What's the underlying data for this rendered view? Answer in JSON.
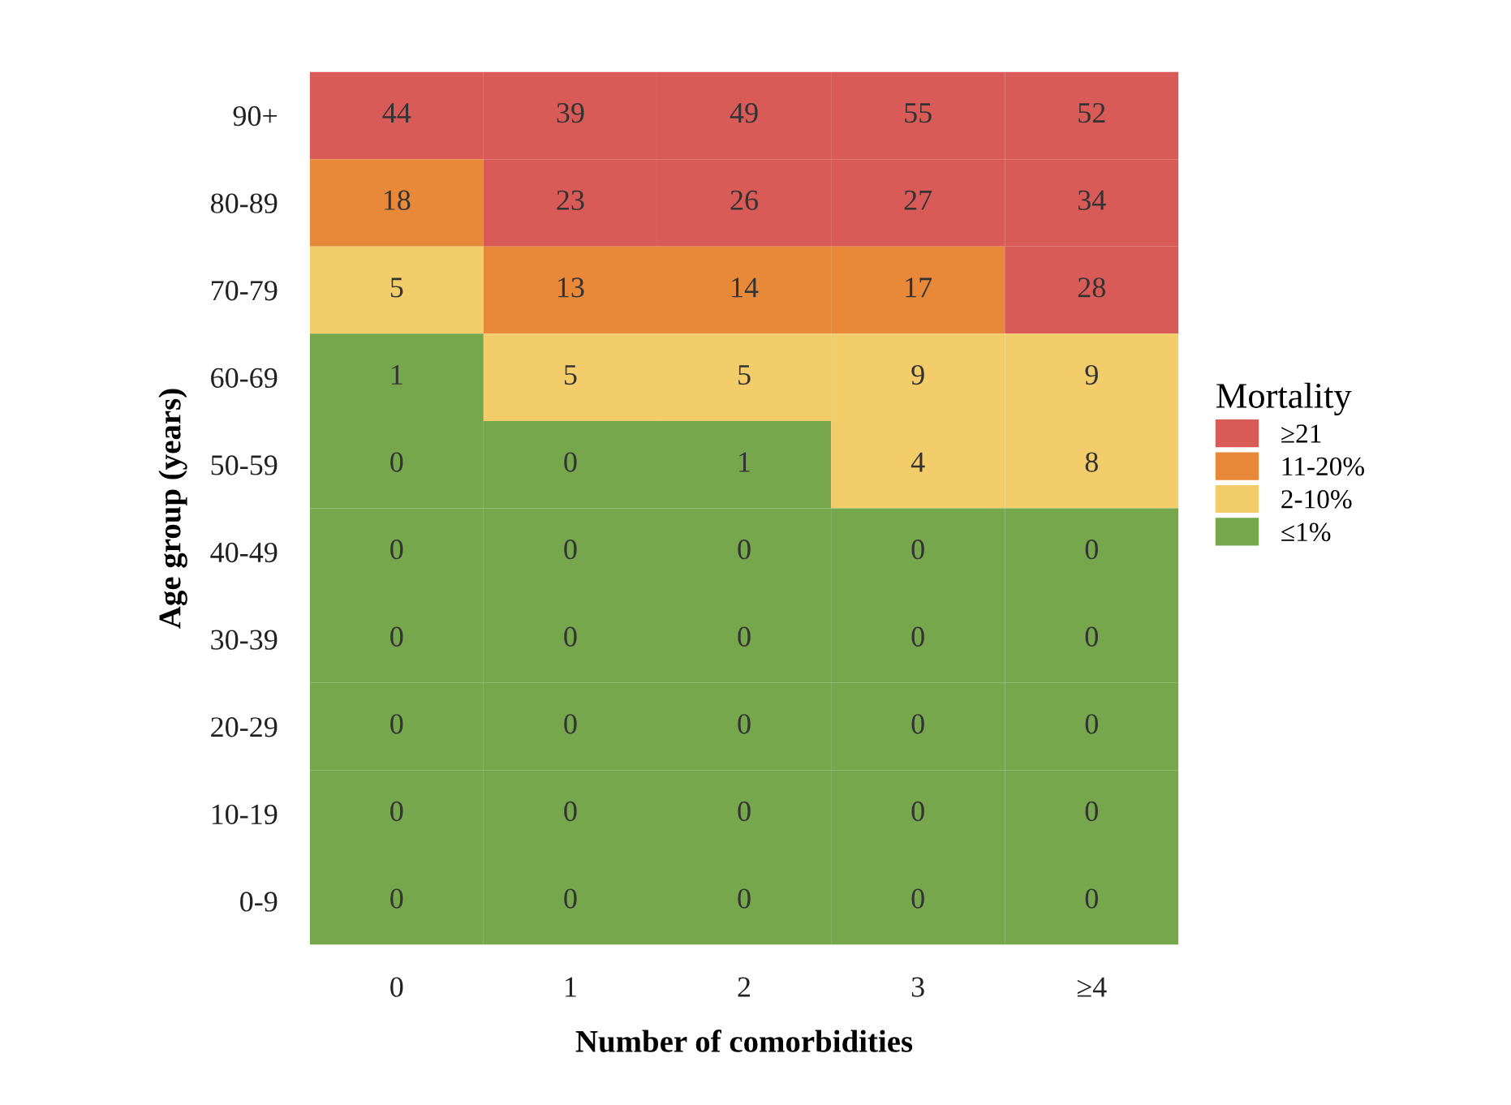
{
  "chart_data": {
    "type": "heatmap",
    "xlabel": "Number of comorbidities",
    "ylabel": "Age group (years)",
    "legend_title": "Mortality",
    "legend": "right",
    "categories": [
      "0",
      "1",
      "2",
      "3",
      "≥4"
    ],
    "y_categories": [
      "90+",
      "80-89",
      "70-79",
      "60-69",
      "50-59",
      "40-49",
      "30-39",
      "20-29",
      "10-19",
      "0-9"
    ],
    "cells": [
      [
        44,
        39,
        49,
        55,
        52
      ],
      [
        18,
        23,
        26,
        27,
        34
      ],
      [
        5,
        13,
        14,
        17,
        28
      ],
      [
        1,
        5,
        5,
        9,
        9
      ],
      [
        0,
        0,
        1,
        4,
        8
      ],
      [
        0,
        0,
        0,
        0,
        0
      ],
      [
        0,
        0,
        0,
        0,
        0
      ],
      [
        0,
        0,
        0,
        0,
        0
      ],
      [
        0,
        0,
        0,
        0,
        0
      ],
      [
        0,
        0,
        0,
        0,
        0
      ]
    ],
    "colors": [
      [
        "#d95b57",
        "#d95b57",
        "#d95b57",
        "#d95b57",
        "#d95b57"
      ],
      [
        "#e8893a",
        "#d95b57",
        "#d95b57",
        "#d95b57",
        "#d95b57"
      ],
      [
        "#f2cd6a",
        "#e8893a",
        "#e8893a",
        "#e8893a",
        "#d95b57"
      ],
      [
        "#76a74d",
        "#f2cd6a",
        "#f2cd6a",
        "#f2cd6a",
        "#f2cd6a"
      ],
      [
        "#76a74d",
        "#76a74d",
        "#76a74d",
        "#f2cd6a",
        "#f2cd6a"
      ],
      [
        "#76a74d",
        "#76a74d",
        "#76a74d",
        "#76a74d",
        "#76a74d"
      ],
      [
        "#76a74d",
        "#76a74d",
        "#76a74d",
        "#76a74d",
        "#76a74d"
      ],
      [
        "#76a74d",
        "#76a74d",
        "#76a74d",
        "#76a74d",
        "#76a74d"
      ],
      [
        "#76a74d",
        "#76a74d",
        "#76a74d",
        "#76a74d",
        "#76a74d"
      ],
      [
        "#76a74d",
        "#76a74d",
        "#76a74d",
        "#76a74d",
        "#76a74d"
      ]
    ],
    "series": [
      {
        "name": "≥21",
        "color": "#d95b57",
        "values": [
          null,
          null,
          null,
          null,
          null
        ]
      },
      {
        "name": "11-20%",
        "color": "#e8893a",
        "values": [
          null,
          null,
          null,
          null,
          null
        ]
      },
      {
        "name": "2-10%",
        "color": "#f2cd6a",
        "values": [
          null,
          null,
          null,
          null,
          null
        ]
      },
      {
        "name": "≤1%",
        "color": "#76a74d",
        "values": [
          null,
          null,
          null,
          null,
          null
        ]
      }
    ],
    "data_labels": true,
    "grid": false
  }
}
